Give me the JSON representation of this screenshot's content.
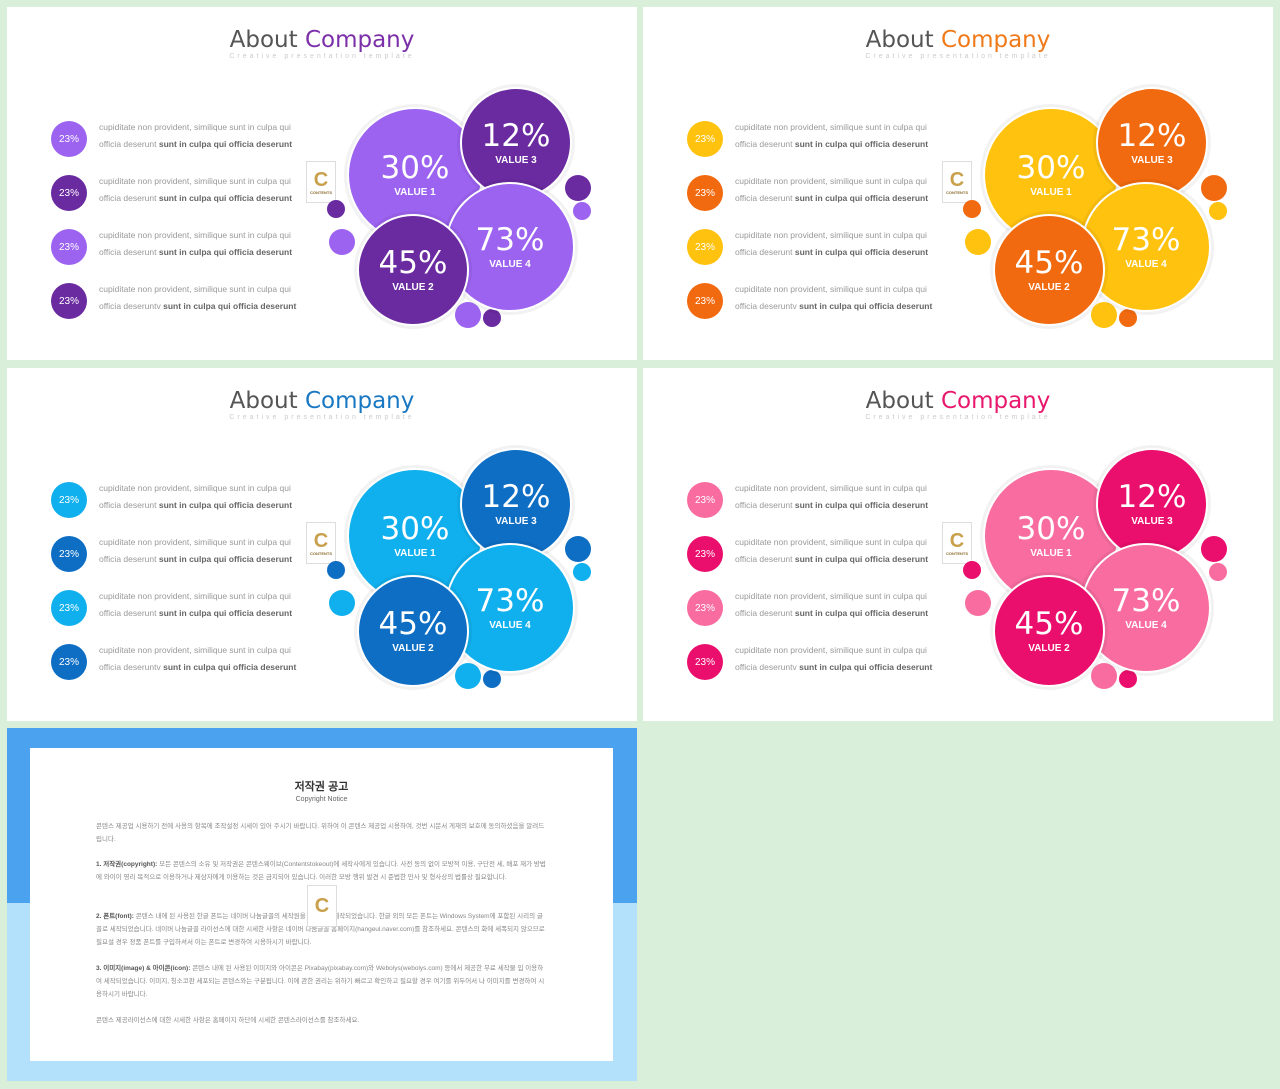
{
  "slides": [
    {
      "id": "purple",
      "title": "About",
      "title_accent": "Company",
      "subtitle": "Creative presentation template",
      "colors": {
        "accent": "#7b2fa8",
        "dark": "#6a2aa0",
        "light": "#9c63f0"
      },
      "rows": [
        {
          "pct": "23%",
          "line1": "cupiditate non provident, similique sunt in culpa qui",
          "line2a": "officia deserunt ",
          "line2b": "sunt in culpa qui officia deserunt"
        },
        {
          "pct": "23%",
          "line1": "cupiditate non provident, similique sunt in culpa qui",
          "line2a": "officia deserunt ",
          "line2b": "sunt in culpa qui officia deserunt"
        },
        {
          "pct": "23%",
          "line1": "cupiditate non provident, similique sunt in culpa qui",
          "line2a": "officia deserunt ",
          "line2b": "sunt in culpa qui officia deserunt"
        },
        {
          "pct": "23%",
          "line1": "cupiditate non provident, similique sunt in culpa qui",
          "line2a": "officia deseruntv ",
          "line2b": "sunt in culpa qui officia deserunt"
        }
      ],
      "circles": [
        {
          "value": "30%",
          "label": "VALUE 1"
        },
        {
          "value": "12%",
          "label": "VALUE 3"
        },
        {
          "value": "73%",
          "label": "VALUE 4"
        },
        {
          "value": "45%",
          "label": "VALUE 2"
        }
      ],
      "logo": {
        "letter": "C",
        "text": "CONTENTS"
      }
    },
    {
      "id": "orange",
      "title": "About",
      "title_accent": "Company",
      "subtitle": "Creative presentation template",
      "colors": {
        "accent": "#f07a1a",
        "dark": "#f26a0f",
        "light": "#ffc20e"
      },
      "rows": [
        {
          "pct": "23%",
          "line1": "cupiditate non provident, similique sunt in culpa qui",
          "line2a": "officia deserunt ",
          "line2b": "sunt in culpa qui officia deserunt"
        },
        {
          "pct": "23%",
          "line1": "cupiditate non provident, similique sunt in culpa qui",
          "line2a": "officia deserunt ",
          "line2b": "sunt in culpa qui officia deserunt"
        },
        {
          "pct": "23%",
          "line1": "cupiditate non provident, similique sunt in culpa qui",
          "line2a": "officia deserunt ",
          "line2b": "sunt in culpa qui officia deserunt"
        },
        {
          "pct": "23%",
          "line1": "cupiditate non provident, similique sunt in culpa qui",
          "line2a": "officia deseruntv ",
          "line2b": "sunt in culpa qui officia deserunt"
        }
      ],
      "circles": [
        {
          "value": "30%",
          "label": "VALUE 1"
        },
        {
          "value": "12%",
          "label": "VALUE 3"
        },
        {
          "value": "73%",
          "label": "VALUE 4"
        },
        {
          "value": "45%",
          "label": "VALUE 2"
        }
      ],
      "logo": {
        "letter": "C",
        "text": "CONTENTS"
      }
    },
    {
      "id": "blue",
      "title": "About",
      "title_accent": "Company",
      "subtitle": "Creative presentation template",
      "colors": {
        "accent": "#1a78c2",
        "dark": "#0e6ec4",
        "light": "#10b0ee"
      },
      "rows": [
        {
          "pct": "23%",
          "line1": "cupiditate non provident, similique sunt in culpa qui",
          "line2a": "officia deserunt ",
          "line2b": "sunt in culpa qui officia deserunt"
        },
        {
          "pct": "23%",
          "line1": "cupiditate non provident, similique sunt in culpa qui",
          "line2a": "officia deserunt ",
          "line2b": "sunt in culpa qui officia deserunt"
        },
        {
          "pct": "23%",
          "line1": "cupiditate non provident, similique sunt in culpa qui",
          "line2a": "officia deserunt ",
          "line2b": "sunt in culpa qui officia deserunt"
        },
        {
          "pct": "23%",
          "line1": "cupiditate non provident, similique sunt in culpa qui",
          "line2a": "officia deseruntv ",
          "line2b": "sunt in culpa qui officia deserunt"
        }
      ],
      "circles": [
        {
          "value": "30%",
          "label": "VALUE 1"
        },
        {
          "value": "12%",
          "label": "VALUE 3"
        },
        {
          "value": "73%",
          "label": "VALUE 4"
        },
        {
          "value": "45%",
          "label": "VALUE 2"
        }
      ],
      "logo": {
        "letter": "C",
        "text": "CONTENTS"
      }
    },
    {
      "id": "pink",
      "title": "About",
      "title_accent": "Company",
      "subtitle": "Creative presentation template",
      "colors": {
        "accent": "#e8186c",
        "dark": "#ea0f6d",
        "light": "#f86ca0"
      },
      "rows": [
        {
          "pct": "23%",
          "line1": "cupiditate non provident, similique sunt in culpa qui",
          "line2a": "officia deserunt ",
          "line2b": "sunt in culpa qui officia deserunt"
        },
        {
          "pct": "23%",
          "line1": "cupiditate non provident, similique sunt in culpa qui",
          "line2a": "officia deserunt ",
          "line2b": "sunt in culpa qui officia deserunt"
        },
        {
          "pct": "23%",
          "line1": "cupiditate non provident, similique sunt in culpa qui",
          "line2a": "officia deserunt ",
          "line2b": "sunt in culpa qui officia deserunt"
        },
        {
          "pct": "23%",
          "line1": "cupiditate non provident, similique sunt in culpa qui",
          "line2a": "officia deseruntv ",
          "line2b": "sunt in culpa qui officia deserunt"
        }
      ],
      "circles": [
        {
          "value": "30%",
          "label": "VALUE 1"
        },
        {
          "value": "12%",
          "label": "VALUE 3"
        },
        {
          "value": "73%",
          "label": "VALUE 4"
        },
        {
          "value": "45%",
          "label": "VALUE 2"
        }
      ],
      "logo": {
        "letter": "C",
        "text": "CONTENTS"
      }
    }
  ],
  "copyright": {
    "title": "저작권 공고",
    "subtitle": "Copyright Notice",
    "p1": "콘텐스 제공업 시용하기 전에 사용의 항목에 조작설정 시세이 있어 주시기 바랍니다. 위하여 이 콘텐스 제공업 시용하여, 것번 시문서 게재의 보호에 동의하셨음을 알려드립니다.",
    "p2_label": "1. 저작권(copyright):",
    "p2": " 모든 콘텐스의 소유 및 저작권은 콘텐스웨이브(Contentstokeout)에 세작사에게 있습니다. 사전 동의 없이 모방적 이용, 구단전 세, 배포 재가 방법에 와이이 영리 목적으로 이용하거나 제삼자에게 이용하는 것은 금지되어 있습니다. 이러한 모방 행위 발견 시 준법한 민사 및 형사상의 법률상 필요합니다.",
    "p3_label": "2. 폰트(font):",
    "p3": " 콘텐스 내에 된 사용된 한글 폰트는 네이버 나눔글꼴의 세작원을 필요하에 세작되었습니다. 한글 외의 모든 폰트는 Windows System에 포함된 시리의 글꼴로 세작되었습니다. 네이버 나눔글꼴 라이선스에 대한 시세한 사항은 네이버 나눔글꼴 홈페이지(hangeul.naver.com)를 참조하세요. 콘텐스의 화에 세폭되지 않으므로 필요설 경우 정품 폰트를 구입하셔서 이는 폰트로 변경하여 시용하시기 바랍니다.",
    "p4_label": "3. 이미지(image) & 아이콘(icon):",
    "p4": " 콘텐스 내에 된 사용된 이미지와 아이콘은 Pixabay(pixabay.com)와 Webolys(webolys.com) 등에서 제공한 무료 세작물 입 이용하여 세작되었습니다. 이미지, 칭소코판 세포되는 콘텐스와는 구분됩니다. 이에 관한 권리는 위하기 빠르고 확인하고 필요할 경우 여기를 위두어서 나 이미지를 변경하여 시용하시기 바랍니다.",
    "p5": "콘텐스 제공라이선스에 대한 시세한 사항은 홈페이지 하단에 시세한 콘텐스라이선스를 참조하세요."
  }
}
